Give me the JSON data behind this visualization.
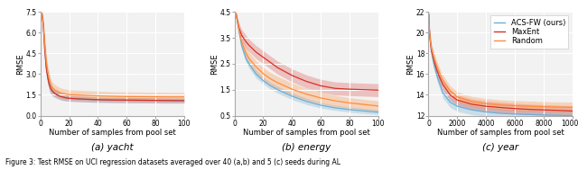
{
  "fig_width": 6.4,
  "fig_height": 1.89,
  "dpi": 100,
  "subplots": [
    {
      "subtitle": "(a) yacht",
      "xlabel": "Number of samples from pool set",
      "ylabel": "RMSE",
      "xlim": [
        0,
        100
      ],
      "ylim": [
        0.0,
        7.5
      ],
      "yticks": [
        0.0,
        1.5,
        3.0,
        4.5,
        6.0,
        7.5
      ],
      "xticks": [
        0,
        20,
        40,
        60,
        80,
        100
      ],
      "curves": {
        "acs_fw": {
          "x": [
            1,
            2,
            3,
            4,
            5,
            6,
            7,
            8,
            9,
            10,
            12,
            14,
            16,
            18,
            20,
            25,
            30,
            35,
            40,
            50,
            60,
            70,
            80,
            90,
            100
          ],
          "y": [
            7.4,
            6.5,
            4.8,
            3.5,
            2.8,
            2.3,
            2.0,
            1.8,
            1.7,
            1.6,
            1.48,
            1.38,
            1.33,
            1.28,
            1.25,
            1.22,
            1.19,
            1.17,
            1.15,
            1.13,
            1.12,
            1.11,
            1.1,
            1.09,
            1.09
          ],
          "y_lo": [
            7.25,
            6.1,
            4.3,
            3.0,
            2.3,
            1.85,
            1.6,
            1.45,
            1.38,
            1.32,
            1.22,
            1.14,
            1.09,
            1.06,
            1.04,
            1.01,
            0.99,
            0.97,
            0.96,
            0.94,
            0.93,
            0.92,
            0.91,
            0.91,
            0.91
          ],
          "y_hi": [
            7.55,
            6.9,
            5.3,
            4.0,
            3.3,
            2.75,
            2.4,
            2.15,
            2.02,
            1.88,
            1.74,
            1.62,
            1.57,
            1.5,
            1.46,
            1.43,
            1.39,
            1.37,
            1.34,
            1.32,
            1.31,
            1.3,
            1.29,
            1.27,
            1.27
          ],
          "color": "#6baed6",
          "alpha": 0.3
        },
        "maxent": {
          "x": [
            1,
            2,
            3,
            4,
            5,
            6,
            7,
            8,
            9,
            10,
            12,
            14,
            16,
            18,
            20,
            25,
            30,
            35,
            40,
            50,
            60,
            70,
            80,
            90,
            100
          ],
          "y": [
            7.4,
            6.5,
            4.8,
            3.5,
            2.8,
            2.3,
            2.0,
            1.8,
            1.7,
            1.6,
            1.48,
            1.38,
            1.33,
            1.28,
            1.25,
            1.22,
            1.19,
            1.17,
            1.15,
            1.13,
            1.12,
            1.11,
            1.1,
            1.09,
            1.08
          ],
          "y_lo": [
            7.25,
            6.1,
            4.3,
            3.0,
            2.3,
            1.85,
            1.6,
            1.45,
            1.38,
            1.32,
            1.22,
            1.14,
            1.09,
            1.06,
            1.04,
            1.01,
            0.99,
            0.97,
            0.96,
            0.94,
            0.93,
            0.92,
            0.91,
            0.9,
            0.9
          ],
          "y_hi": [
            7.55,
            6.9,
            5.3,
            4.0,
            3.3,
            2.75,
            2.4,
            2.15,
            2.02,
            1.88,
            1.74,
            1.62,
            1.57,
            1.5,
            1.46,
            1.43,
            1.39,
            1.37,
            1.34,
            1.32,
            1.31,
            1.3,
            1.29,
            1.28,
            1.26
          ],
          "color": "#d73027",
          "alpha": 0.2
        },
        "random": {
          "x": [
            1,
            2,
            3,
            4,
            5,
            6,
            7,
            8,
            9,
            10,
            12,
            14,
            16,
            18,
            20,
            25,
            30,
            35,
            40,
            50,
            60,
            70,
            80,
            90,
            100
          ],
          "y": [
            7.4,
            6.6,
            5.2,
            4.0,
            3.2,
            2.7,
            2.3,
            2.05,
            1.95,
            1.85,
            1.75,
            1.65,
            1.6,
            1.55,
            1.52,
            1.5,
            1.47,
            1.45,
            1.43,
            1.4,
            1.38,
            1.37,
            1.36,
            1.35,
            1.35
          ],
          "y_lo": [
            7.2,
            6.2,
            4.6,
            3.5,
            2.7,
            2.2,
            1.85,
            1.65,
            1.55,
            1.45,
            1.38,
            1.3,
            1.25,
            1.2,
            1.18,
            1.16,
            1.13,
            1.11,
            1.09,
            1.07,
            1.05,
            1.04,
            1.03,
            1.02,
            1.02
          ],
          "y_hi": [
            7.6,
            7.0,
            5.8,
            4.5,
            3.7,
            3.2,
            2.75,
            2.45,
            2.35,
            2.25,
            2.12,
            2.0,
            1.95,
            1.9,
            1.86,
            1.84,
            1.81,
            1.79,
            1.77,
            1.73,
            1.71,
            1.7,
            1.69,
            1.68,
            1.68
          ],
          "color": "#fd8d3c",
          "alpha": 0.3
        }
      }
    },
    {
      "subtitle": "(b) energy",
      "xlabel": "Number of samples from pool set",
      "ylabel": "RMSE",
      "xlim": [
        0,
        100
      ],
      "ylim": [
        0.5,
        4.5
      ],
      "yticks": [
        0.5,
        1.5,
        2.5,
        3.5,
        4.5
      ],
      "xticks": [
        0,
        20,
        40,
        60,
        80,
        100
      ],
      "curves": {
        "acs_fw": {
          "x": [
            1,
            3,
            5,
            8,
            10,
            15,
            20,
            25,
            30,
            40,
            50,
            60,
            70,
            80,
            90,
            100
          ],
          "y": [
            4.45,
            3.8,
            3.2,
            2.7,
            2.5,
            2.1,
            1.85,
            1.65,
            1.5,
            1.25,
            1.05,
            0.9,
            0.8,
            0.73,
            0.68,
            0.63
          ],
          "y_lo": [
            4.38,
            3.65,
            3.05,
            2.55,
            2.35,
            1.95,
            1.72,
            1.52,
            1.37,
            1.12,
            0.93,
            0.79,
            0.7,
            0.63,
            0.58,
            0.54
          ],
          "y_hi": [
            4.52,
            3.95,
            3.35,
            2.85,
            2.65,
            2.25,
            1.98,
            1.78,
            1.63,
            1.38,
            1.17,
            1.01,
            0.9,
            0.83,
            0.78,
            0.72
          ],
          "color": "#6baed6",
          "alpha": 0.3
        },
        "maxent": {
          "x": [
            1,
            3,
            5,
            8,
            10,
            15,
            20,
            25,
            30,
            40,
            50,
            60,
            70,
            80,
            90,
            100
          ],
          "y": [
            4.45,
            3.9,
            3.6,
            3.35,
            3.22,
            2.95,
            2.75,
            2.55,
            2.35,
            2.05,
            1.82,
            1.65,
            1.55,
            1.52,
            1.5,
            1.48
          ],
          "y_lo": [
            4.38,
            3.72,
            3.38,
            3.1,
            2.98,
            2.7,
            2.5,
            2.3,
            2.1,
            1.8,
            1.57,
            1.4,
            1.3,
            1.27,
            1.25,
            1.23
          ],
          "y_hi": [
            4.52,
            4.08,
            3.82,
            3.6,
            3.46,
            3.2,
            3.0,
            2.8,
            2.6,
            2.3,
            2.07,
            1.9,
            1.8,
            1.77,
            1.75,
            1.73
          ],
          "color": "#d73027",
          "alpha": 0.25
        },
        "random": {
          "x": [
            1,
            3,
            5,
            8,
            10,
            15,
            20,
            25,
            30,
            40,
            50,
            60,
            70,
            80,
            90,
            100
          ],
          "y": [
            4.45,
            3.85,
            3.35,
            2.92,
            2.72,
            2.38,
            2.12,
            1.92,
            1.77,
            1.52,
            1.33,
            1.18,
            1.07,
            0.99,
            0.93,
            0.87
          ],
          "y_lo": [
            4.38,
            3.68,
            3.12,
            2.68,
            2.48,
            2.14,
            1.88,
            1.68,
            1.52,
            1.28,
            1.1,
            0.96,
            0.86,
            0.79,
            0.73,
            0.67
          ],
          "y_hi": [
            4.52,
            4.02,
            3.58,
            3.16,
            2.96,
            2.62,
            2.36,
            2.16,
            2.02,
            1.76,
            1.56,
            1.4,
            1.28,
            1.19,
            1.13,
            1.07
          ],
          "color": "#fd8d3c",
          "alpha": 0.3
        }
      }
    },
    {
      "subtitle": "(c) year",
      "xlabel": "Number of samples from pool set",
      "ylabel": "RMSE",
      "xlim": [
        0,
        10000
      ],
      "ylim": [
        12,
        22
      ],
      "yticks": [
        12,
        14,
        16,
        18,
        20,
        22
      ],
      "xticks": [
        0,
        2000,
        4000,
        6000,
        8000,
        10000
      ],
      "curves": {
        "acs_fw": {
          "x": [
            10,
            50,
            100,
            200,
            400,
            600,
            800,
            1000,
            1500,
            2000,
            3000,
            4000,
            5000,
            6000,
            7000,
            8000,
            9000,
            10000
          ],
          "y": [
            21.8,
            20.5,
            19.5,
            18.2,
            16.8,
            15.8,
            15.0,
            14.2,
            13.3,
            12.9,
            12.55,
            12.35,
            12.22,
            12.15,
            12.1,
            12.06,
            12.03,
            12.0
          ],
          "y_lo": [
            21.5,
            20.1,
            19.0,
            17.7,
            16.3,
            15.3,
            14.5,
            13.7,
            12.8,
            12.4,
            12.1,
            11.9,
            11.78,
            11.71,
            11.67,
            11.63,
            11.6,
            11.57
          ],
          "y_hi": [
            22.1,
            20.9,
            20.0,
            18.7,
            17.3,
            16.3,
            15.5,
            14.7,
            13.8,
            13.4,
            13.0,
            12.8,
            12.66,
            12.59,
            12.53,
            12.49,
            12.46,
            12.43
          ],
          "color": "#6baed6",
          "alpha": 0.3
        },
        "maxent": {
          "x": [
            10,
            50,
            100,
            200,
            400,
            600,
            800,
            1000,
            1500,
            2000,
            3000,
            4000,
            5000,
            6000,
            7000,
            8000,
            9000,
            10000
          ],
          "y": [
            21.8,
            20.5,
            19.5,
            18.3,
            17.2,
            16.3,
            15.6,
            15.0,
            14.0,
            13.5,
            13.1,
            12.9,
            12.78,
            12.68,
            12.6,
            12.55,
            12.5,
            12.45
          ],
          "y_lo": [
            21.5,
            20.1,
            19.0,
            17.8,
            16.7,
            15.8,
            15.1,
            14.5,
            13.5,
            13.0,
            12.6,
            12.4,
            12.28,
            12.18,
            12.1,
            12.05,
            12.0,
            11.95
          ],
          "y_hi": [
            22.1,
            20.9,
            20.0,
            18.8,
            17.7,
            16.8,
            16.1,
            15.5,
            14.5,
            14.0,
            13.6,
            13.4,
            13.28,
            13.18,
            13.1,
            13.05,
            13.0,
            12.95
          ],
          "color": "#d73027",
          "alpha": 0.25
        },
        "random": {
          "x": [
            10,
            50,
            100,
            200,
            400,
            600,
            800,
            1000,
            1500,
            2000,
            3000,
            4000,
            5000,
            6000,
            7000,
            8000,
            9000,
            10000
          ],
          "y": [
            21.8,
            20.5,
            19.5,
            18.5,
            17.5,
            16.7,
            16.0,
            15.4,
            14.4,
            13.8,
            13.35,
            13.15,
            13.02,
            12.95,
            12.9,
            12.85,
            12.82,
            12.8
          ],
          "y_lo": [
            21.5,
            20.1,
            19.0,
            18.0,
            17.0,
            16.2,
            15.5,
            14.9,
            13.9,
            13.3,
            12.85,
            12.65,
            12.52,
            12.45,
            12.4,
            12.35,
            12.32,
            12.3
          ],
          "y_hi": [
            22.1,
            20.9,
            20.0,
            19.0,
            18.0,
            17.2,
            16.5,
            15.9,
            14.9,
            14.3,
            13.85,
            13.65,
            13.52,
            13.45,
            13.4,
            13.35,
            13.32,
            13.3
          ],
          "color": "#fd8d3c",
          "alpha": 0.3
        }
      }
    }
  ],
  "legend": {
    "labels": [
      "ACS-FW (ours)",
      "MaxEnt",
      "Random"
    ],
    "colors": [
      "#6baed6",
      "#d73027",
      "#fd8d3c"
    ],
    "loc": "upper right",
    "subplot_idx": 2
  },
  "fig_bg_color": "#ffffff",
  "ax_bg_color": "#f2f2f2",
  "grid_color": "#ffffff",
  "font_size_subtitle": 7.5,
  "font_size_axis": 6.0,
  "font_size_tick": 5.5,
  "font_size_legend": 6.0
}
